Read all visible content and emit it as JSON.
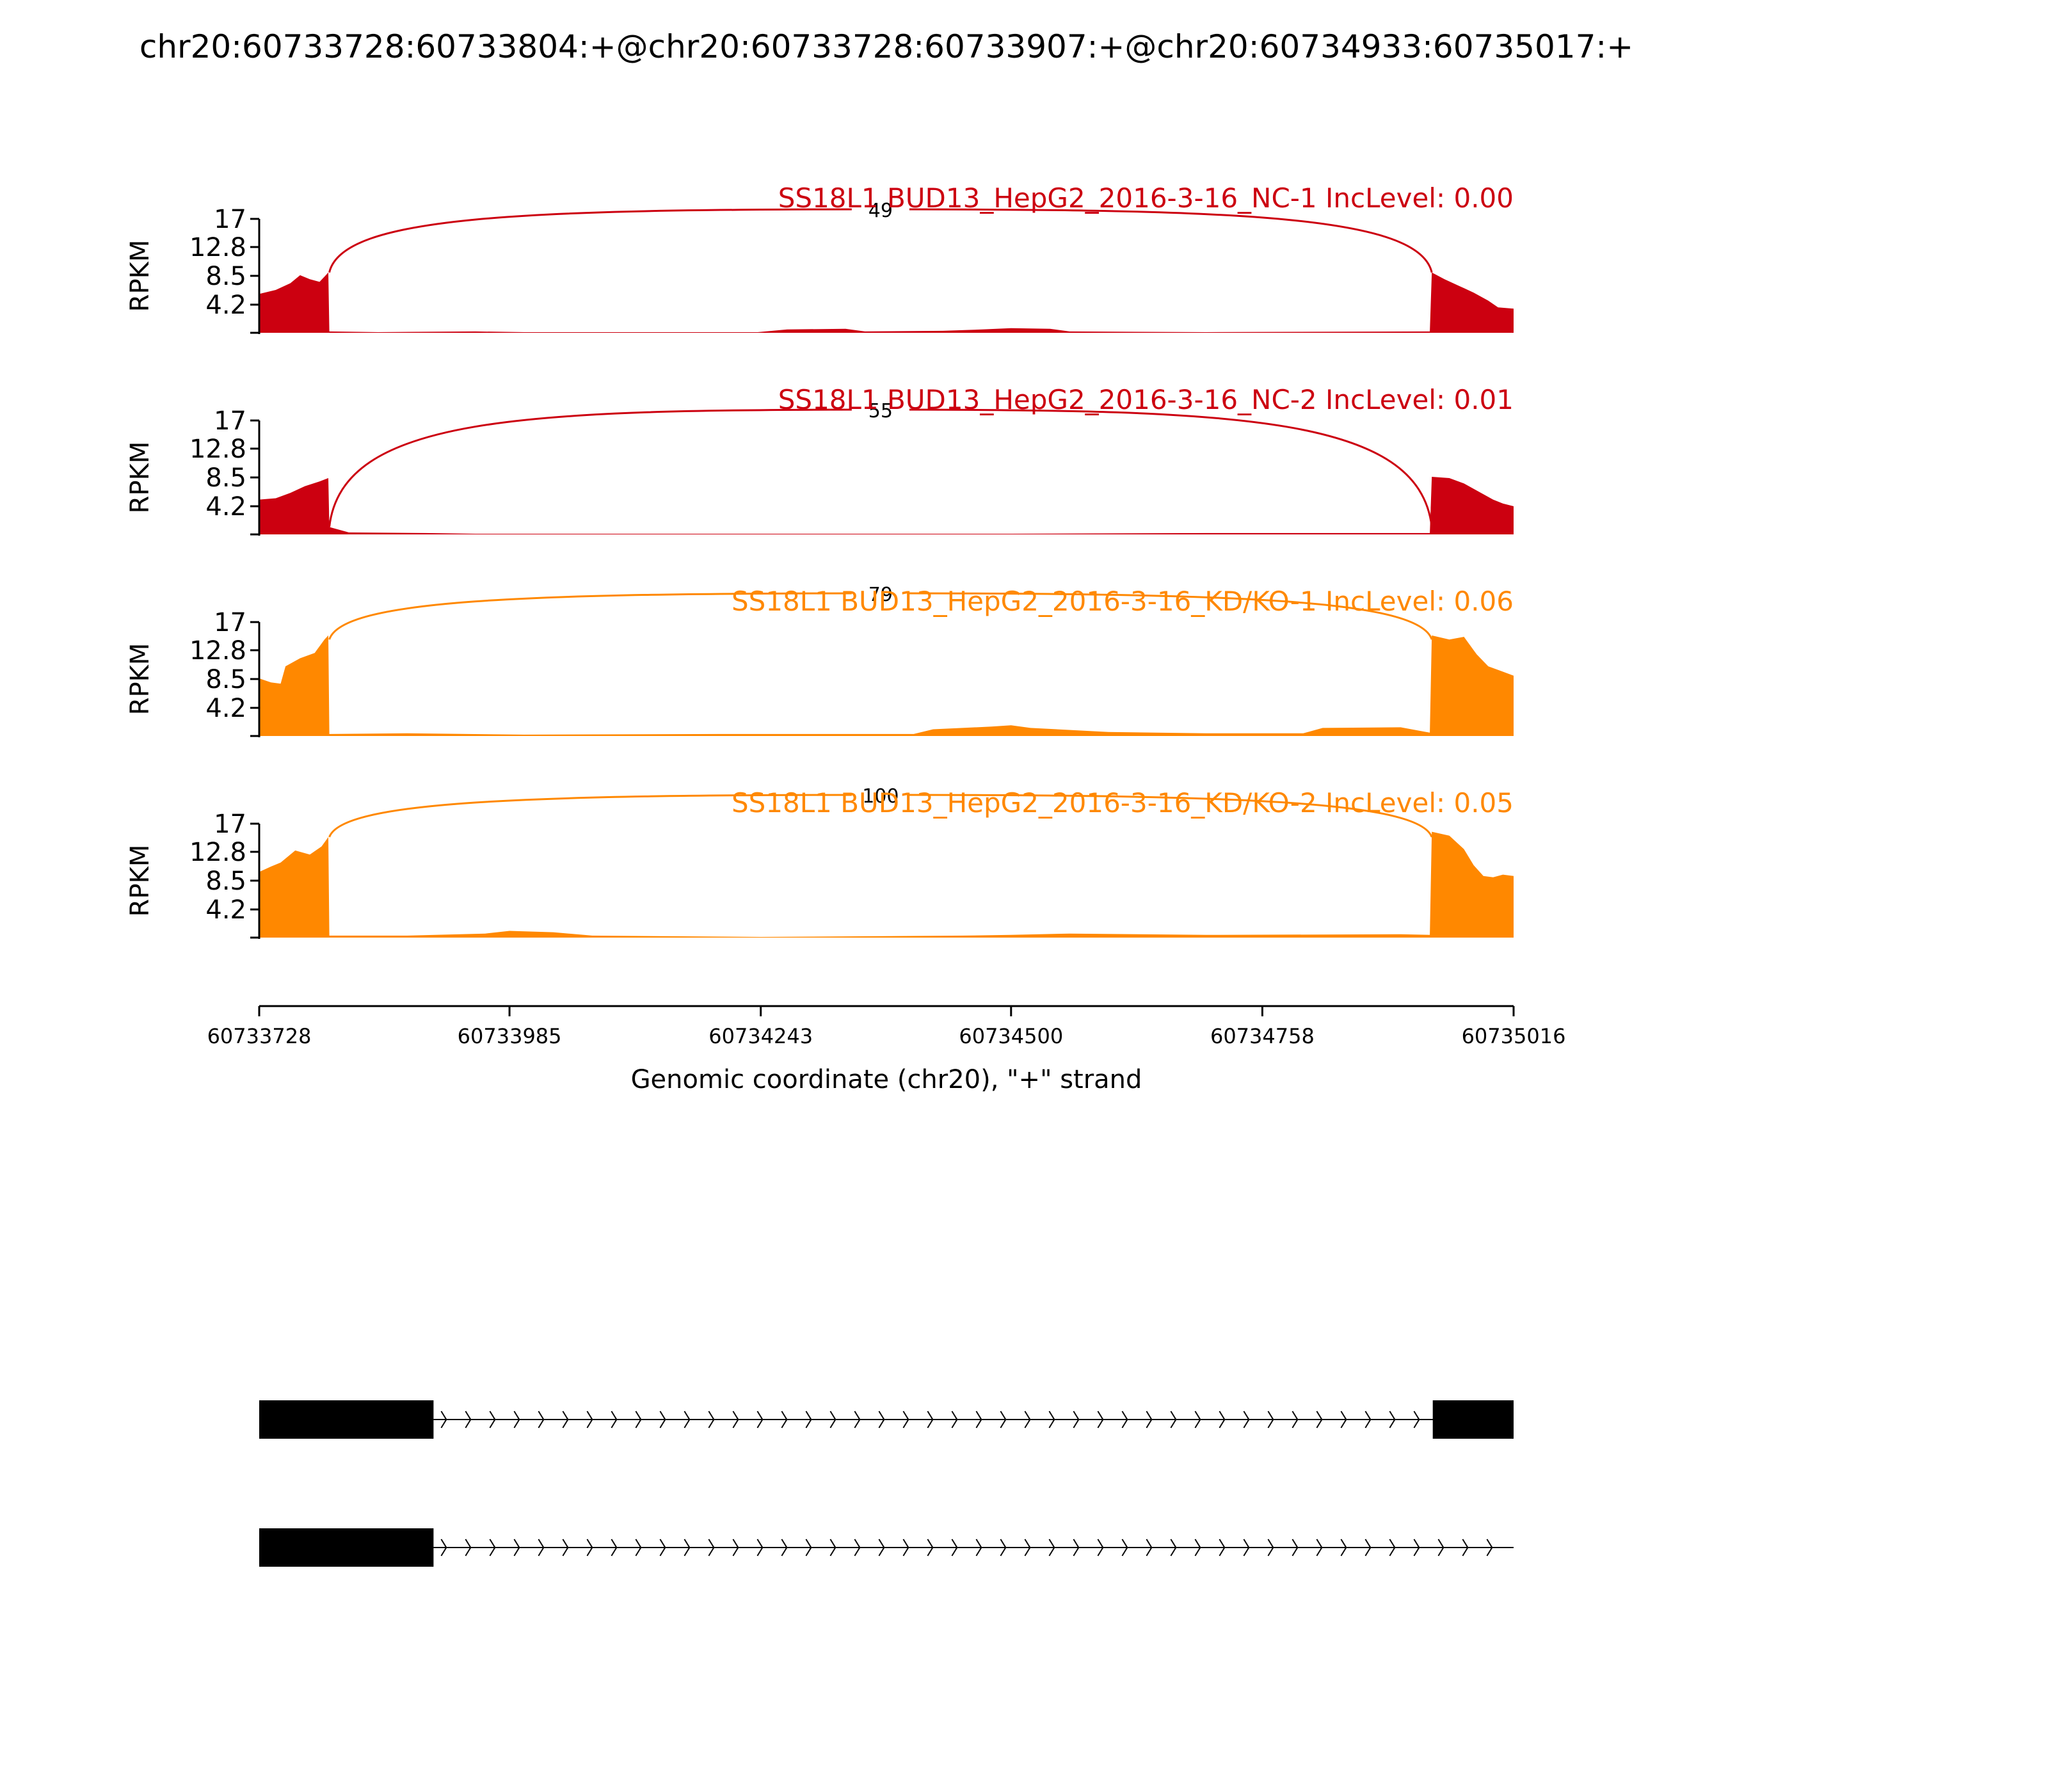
{
  "chart_data": {
    "type": "area",
    "title": "chr20:60733728:60733804:+@chr20:60733728:60733907:+@chr20:60734933:60735017:+",
    "xlabel": "Genomic coordinate (chr20), \"+\" strand",
    "ylabel": "RPKM",
    "xlim": [
      60733728,
      60735016
    ],
    "x_ticks": [
      "60733728",
      "60733985",
      "60734243",
      "60734500",
      "60734758",
      "60735016"
    ],
    "ylim": [
      0,
      17
    ],
    "y_ticks": [
      "4.2",
      "8.5",
      "12.8",
      "17"
    ],
    "colors": {
      "NC": "#cc0010",
      "KD": "#ff8800",
      "axis": "#000000"
    },
    "series": [
      {
        "name": "SS18L1 BUD13_HepG2_2016-3-16_NC-1 IncLevel: 0.00",
        "group": "NC",
        "junction_count": "49",
        "coverage": [
          [
            60733728,
            5.8
          ],
          [
            60733745,
            6.4
          ],
          [
            60733760,
            7.4
          ],
          [
            60733770,
            8.6
          ],
          [
            60733780,
            8.0
          ],
          [
            60733790,
            7.6
          ],
          [
            60733799,
            9.0
          ],
          [
            60733800,
            0.2
          ],
          [
            60733850,
            0.1
          ],
          [
            60733950,
            0.2
          ],
          [
            60734000,
            0.1
          ],
          [
            60734240,
            0.1
          ],
          [
            60734270,
            0.5
          ],
          [
            60734330,
            0.6
          ],
          [
            60734350,
            0.2
          ],
          [
            60734430,
            0.3
          ],
          [
            60734470,
            0.5
          ],
          [
            60734500,
            0.7
          ],
          [
            60734540,
            0.6
          ],
          [
            60734560,
            0.2
          ],
          [
            60734700,
            0.1
          ],
          [
            60734930,
            0.2
          ],
          [
            60734932,
            9.0
          ],
          [
            60734945,
            8.0
          ],
          [
            60734960,
            7.0
          ],
          [
            60734975,
            6.0
          ],
          [
            60734990,
            4.8
          ],
          [
            60735000,
            3.8
          ],
          [
            60735016,
            3.6
          ]
        ]
      },
      {
        "name": "SS18L1 BUD13_HepG2_2016-3-16_NC-2 IncLevel: 0.01",
        "group": "NC",
        "junction_count": "55",
        "coverage": [
          [
            60733728,
            5.2
          ],
          [
            60733745,
            5.4
          ],
          [
            60733760,
            6.2
          ],
          [
            60733775,
            7.2
          ],
          [
            60733790,
            7.9
          ],
          [
            60733799,
            8.4
          ],
          [
            60733800,
            1.1
          ],
          [
            60733820,
            0.3
          ],
          [
            60733900,
            0.2
          ],
          [
            60733950,
            0.1
          ],
          [
            60734100,
            0.1
          ],
          [
            60734300,
            0.1
          ],
          [
            60734500,
            0.1
          ],
          [
            60734700,
            0.2
          ],
          [
            60734930,
            0.2
          ],
          [
            60734932,
            8.6
          ],
          [
            60734950,
            8.4
          ],
          [
            60734965,
            7.6
          ],
          [
            60734980,
            6.4
          ],
          [
            60734995,
            5.2
          ],
          [
            60735005,
            4.6
          ],
          [
            60735016,
            4.2
          ]
        ]
      },
      {
        "name": "SS18L1 BUD13_HepG2_2016-3-16_KD/KO-1 IncLevel: 0.06",
        "group": "KD",
        "junction_count": "79",
        "coverage": [
          [
            60733728,
            8.6
          ],
          [
            60733740,
            8.0
          ],
          [
            60733750,
            7.8
          ],
          [
            60733755,
            10.4
          ],
          [
            60733770,
            11.6
          ],
          [
            60733785,
            12.4
          ],
          [
            60733795,
            14.4
          ],
          [
            60733799,
            15.0
          ],
          [
            60733800,
            0.3
          ],
          [
            60733880,
            0.4
          ],
          [
            60734000,
            0.2
          ],
          [
            60734200,
            0.3
          ],
          [
            60734400,
            0.3
          ],
          [
            60734420,
            1.0
          ],
          [
            60734480,
            1.4
          ],
          [
            60734500,
            1.6
          ],
          [
            60734520,
            1.2
          ],
          [
            60734600,
            0.6
          ],
          [
            60734700,
            0.4
          ],
          [
            60734800,
            0.4
          ],
          [
            60734820,
            1.2
          ],
          [
            60734900,
            1.3
          ],
          [
            60734930,
            0.5
          ],
          [
            60734932,
            15.0
          ],
          [
            60734950,
            14.4
          ],
          [
            60734965,
            14.8
          ],
          [
            60734978,
            12.2
          ],
          [
            60734990,
            10.4
          ],
          [
            60735005,
            9.6
          ],
          [
            60735016,
            9.0
          ]
        ]
      },
      {
        "name": "SS18L1 BUD13_HepG2_2016-3-16_KD/KO-2 IncLevel: 0.05",
        "group": "KD",
        "junction_count": "100",
        "coverage": [
          [
            60733728,
            9.8
          ],
          [
            60733740,
            10.6
          ],
          [
            60733750,
            11.2
          ],
          [
            60733765,
            13.0
          ],
          [
            60733780,
            12.4
          ],
          [
            60733792,
            13.6
          ],
          [
            60733799,
            15.0
          ],
          [
            60733800,
            0.3
          ],
          [
            60733880,
            0.3
          ],
          [
            60733960,
            0.6
          ],
          [
            60733985,
            1.0
          ],
          [
            60734030,
            0.8
          ],
          [
            60734070,
            0.3
          ],
          [
            60734243,
            0.1
          ],
          [
            60734450,
            0.3
          ],
          [
            60734500,
            0.4
          ],
          [
            60734560,
            0.6
          ],
          [
            60734700,
            0.4
          ],
          [
            60734900,
            0.5
          ],
          [
            60734930,
            0.4
          ],
          [
            60734932,
            15.8
          ],
          [
            60734950,
            15.2
          ],
          [
            60734965,
            13.2
          ],
          [
            60734975,
            10.8
          ],
          [
            60734985,
            9.2
          ],
          [
            60734995,
            9.0
          ],
          [
            60735005,
            9.4
          ],
          [
            60735016,
            9.2
          ]
        ]
      }
    ],
    "transcripts": [
      {
        "exons": [
          [
            60733728,
            60733907
          ],
          [
            60734933,
            60735016
          ]
        ],
        "intron": [
          60733907,
          60735016
        ]
      },
      {
        "exons": [
          [
            60733728,
            60733907
          ]
        ],
        "intron": [
          60733907,
          60735016
        ]
      }
    ]
  }
}
